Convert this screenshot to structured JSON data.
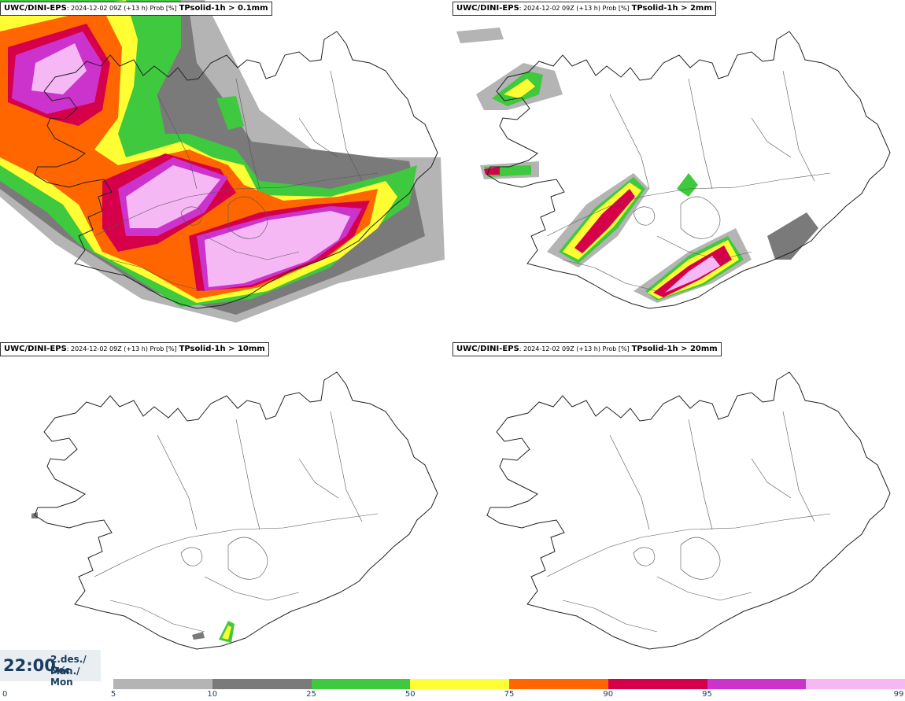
{
  "panels": [
    {
      "model": "UWC/DINI-EPS",
      "run": ": 2024-12-02 09Z (+13 h) Prob [%]",
      "param": "TPsolid-1h > 0.1mm"
    },
    {
      "model": "UWC/DINI-EPS",
      "run": ": 2024-12-02 09Z (+13 h) Prob [%]",
      "param": "TPsolid-1h > 2mm"
    },
    {
      "model": "UWC/DINI-EPS",
      "run": ": 2024-12-02 09Z (+13 h) Prob [%]",
      "param": "TPsolid-1h > 10mm"
    },
    {
      "model": "UWC/DINI-EPS",
      "run": ": 2024-12-02 09Z (+13 h) Prob [%]",
      "param": "TPsolid-1h > 20mm"
    }
  ],
  "time": {
    "clock": "22:00",
    "date": "2.des./ Dec",
    "day": "Mán./ Mon"
  },
  "legend": {
    "ticks": [
      "0",
      "5",
      "10",
      "25",
      "50",
      "75",
      "90",
      "95",
      "99"
    ],
    "colors": [
      "#b4b4b4",
      "#7a7a7a",
      "#3ec93e",
      "#ffff33",
      "#ff6600",
      "#d6004a",
      "#cc33cc",
      "#f5b8f5"
    ]
  },
  "colors": {
    "gray_light": "#b4b4b4",
    "gray_dark": "#7a7a7a",
    "green": "#3ec93e",
    "yellow": "#ffff33",
    "orange": "#ff6600",
    "red": "#d6004a",
    "purple": "#cc33cc",
    "pink": "#f5b8f5"
  }
}
